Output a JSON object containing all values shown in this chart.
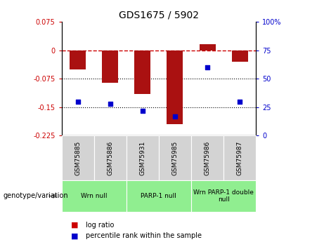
{
  "title": "GDS1675 / 5902",
  "samples": [
    "GSM75885",
    "GSM75886",
    "GSM75931",
    "GSM75985",
    "GSM75986",
    "GSM75987"
  ],
  "log_ratios": [
    -0.05,
    -0.085,
    -0.115,
    -0.195,
    0.015,
    -0.03
  ],
  "percentile_ranks": [
    30,
    28,
    22,
    17,
    60,
    30
  ],
  "ylim_left": [
    -0.225,
    0.075
  ],
  "ylim_right": [
    0,
    100
  ],
  "yticks_left": [
    0.075,
    0,
    -0.075,
    -0.15,
    -0.225
  ],
  "yticks_right": [
    100,
    75,
    50,
    25,
    0
  ],
  "hlines": [
    -0.075,
    -0.15
  ],
  "bar_color": "#aa1111",
  "scatter_color": "#0000cc",
  "groups": [
    {
      "label": "Wrn null",
      "spans": [
        0,
        2
      ]
    },
    {
      "label": "PARP-1 null",
      "spans": [
        2,
        4
      ]
    },
    {
      "label": "Wrn PARP-1 double\nnull",
      "spans": [
        4,
        6
      ]
    }
  ],
  "group_color": "#90ee90",
  "sample_box_color": "#d3d3d3",
  "legend_bar_color": "#cc0000",
  "legend_scatter_color": "#0000cc",
  "legend_label_bar": "log ratio",
  "legend_label_scatter": "percentile rank within the sample",
  "xlabel_genotype": "genotype/variation",
  "bar_width": 0.5
}
